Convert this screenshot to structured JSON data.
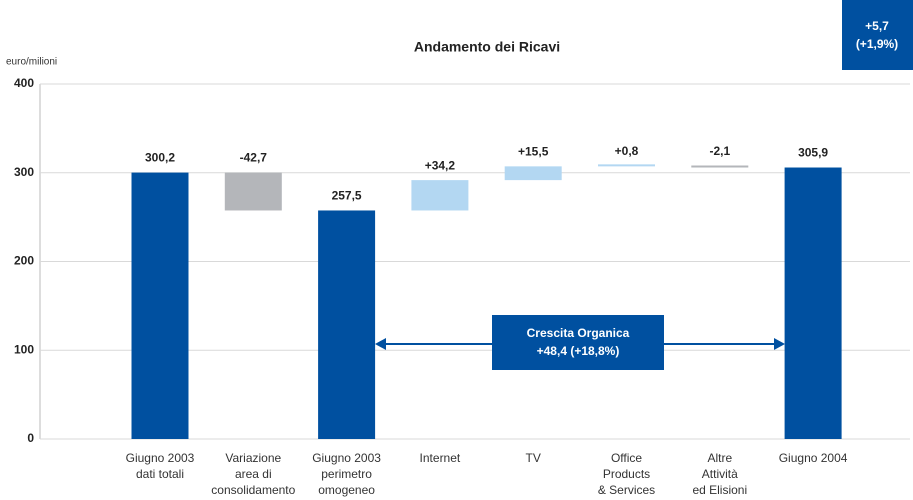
{
  "chart_data": {
    "type": "waterfall",
    "title": "Andamento dei Ricavi",
    "y_label": "euro/milioni",
    "categories": [
      [
        "Giugno 2003",
        "dati totali"
      ],
      [
        "Variazione",
        "area di",
        "consolidamento"
      ],
      [
        "Giugno 2003",
        "perimetro",
        "omogeneo"
      ],
      [
        "Internet"
      ],
      [
        "TV"
      ],
      [
        "Office",
        "Products",
        "& Services"
      ],
      [
        "Altre",
        "Attività",
        "ed Elisioni"
      ],
      [
        "Giugno 2004"
      ]
    ],
    "values": [
      300.2,
      -42.7,
      257.5,
      34.2,
      15.5,
      0.8,
      -2.1,
      305.9
    ],
    "value_labels": [
      "300,2",
      "-42,7",
      "257,5",
      "+34,2",
      "+15,5",
      "+0,8",
      "-2,1",
      "305,9"
    ],
    "totals": [
      true,
      false,
      true,
      false,
      false,
      false,
      false,
      true
    ],
    "colors": [
      "#0050a0",
      "#b4b6ba",
      "#0050a0",
      "#b3d7f2",
      "#b3d7f2",
      "#b3d7f2",
      "#b4b6ba",
      "#0050a0"
    ],
    "ylim": [
      0,
      400
    ],
    "yticks": [
      0,
      100,
      200,
      300,
      400
    ],
    "grid": true,
    "annotations": [
      [
        "Crescita Organica",
        "+48,4 (+18,8%)"
      ],
      [
        "+5,7",
        "(+1,9%)"
      ]
    ]
  }
}
